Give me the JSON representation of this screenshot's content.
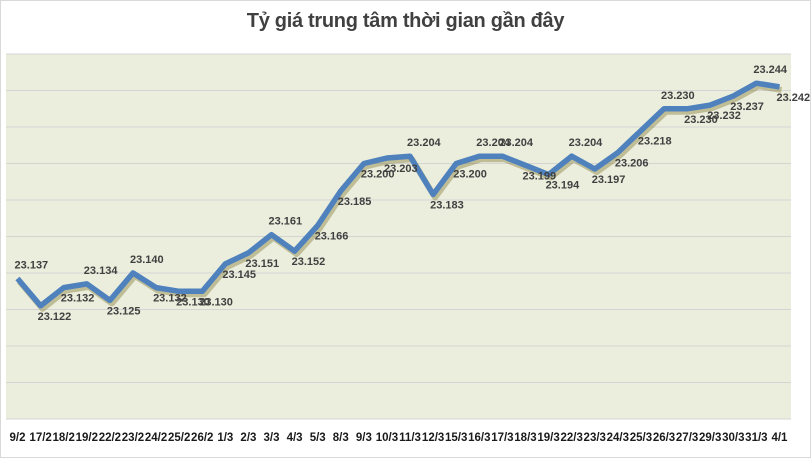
{
  "title": "Tỷ giá trung tâm thời gian gần đây",
  "colors": {
    "plot_background": "#ebeedd",
    "line": "#4f81bd",
    "shadow": "#8a8040",
    "gridline": "#d4d4d4",
    "title": "#404040"
  },
  "chart_data": {
    "type": "line",
    "title": "Tỷ giá trung tâm thời gian gần đây",
    "xlabel": "",
    "ylabel": "",
    "ylim": [
      23.06,
      23.26
    ],
    "y_grid_step": 0.02,
    "grid": true,
    "legend": "none",
    "categories": [
      "9/2",
      "17/2",
      "18/2",
      "19/2",
      "22/2",
      "23/2",
      "24/2",
      "25/2",
      "26/2",
      "1/3",
      "2/3",
      "3/3",
      "4/3",
      "5/3",
      "8/3",
      "9/3",
      "10/3",
      "11/3",
      "12/3",
      "15/3",
      "16/3",
      "17/3",
      "18/3",
      "19/3",
      "22/3",
      "23/3",
      "24/3",
      "25/3",
      "26/3",
      "27/3",
      "29/3",
      "30/3",
      "31/3",
      "4/1"
    ],
    "series": [
      {
        "name": "Tỷ giá trung tâm",
        "values": [
          23.137,
          23.122,
          23.132,
          23.134,
          23.125,
          23.14,
          23.132,
          23.13,
          23.13,
          23.145,
          23.151,
          23.161,
          23.152,
          23.166,
          23.185,
          23.2,
          23.203,
          23.204,
          23.183,
          23.2,
          23.204,
          23.204,
          23.199,
          23.194,
          23.204,
          23.197,
          23.206,
          23.218,
          23.23,
          23.23,
          23.232,
          23.237,
          23.244,
          23.242
        ],
        "labels": [
          "23.137",
          "23.122",
          "23.132",
          "23.134",
          "23.125",
          "23.140",
          "23.132",
          "23.130",
          "23.130",
          "23.145",
          "23.151",
          "23.161",
          "23.152",
          "23.166",
          "23.185",
          "23.200",
          "23.203",
          "23.204",
          "23.183",
          "23.200",
          "23.204",
          "23.204",
          "23.199",
          "23.194",
          "23.204",
          "23.197",
          "23.206",
          "23.218",
          "23.230",
          "23.230",
          "23.232",
          "23.237",
          "23.244",
          "23.242"
        ]
      }
    ]
  }
}
